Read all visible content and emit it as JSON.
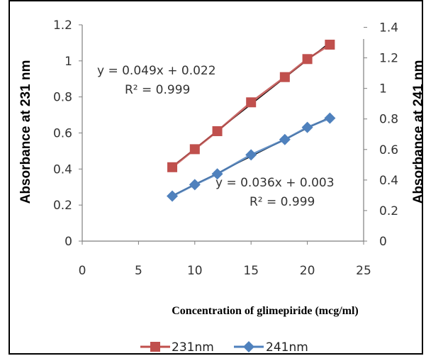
{
  "chart_data": {
    "type": "line",
    "xlabel": "Concentration of glimepiride (mcg/ml)",
    "ylabel": "Absorbance at 231 nm",
    "y2label": "Absorbance at 241 nm",
    "xlim": [
      0,
      25
    ],
    "ylim": [
      0,
      1.2
    ],
    "y2lim": [
      0,
      1.5
    ],
    "x_ticks": [
      "0",
      "5",
      "10",
      "15",
      "20",
      "25"
    ],
    "y_ticks": [
      "0",
      "0.2",
      "0.4",
      "0.6",
      "0.8",
      "1",
      "1.2"
    ],
    "y2_ticks": [
      "0",
      "0.2",
      "0.4",
      "0.6",
      "0.8",
      "1",
      "1.2",
      "1.4"
    ],
    "grid": false,
    "legend_position": "bottom",
    "series": [
      {
        "name": "231nm",
        "axis": "left",
        "color": "#c0504d",
        "marker": "square",
        "x": [
          8,
          10,
          12,
          15,
          18,
          20,
          22
        ],
        "y": [
          0.41,
          0.51,
          0.61,
          0.77,
          0.91,
          1.01,
          1.09
        ]
      },
      {
        "name": "241nm",
        "axis": "right",
        "color": "#4f81bd",
        "marker": "diamond",
        "x": [
          8,
          10,
          12,
          15,
          18,
          20,
          22
        ],
        "y": [
          0.295,
          0.37,
          0.44,
          0.565,
          0.665,
          0.745,
          0.805
        ]
      }
    ],
    "trendline_color": "#000000",
    "annotations": {
      "eq231": "y = 0.049x + 0.022",
      "r231": "R² = 0.999",
      "eq241": "y = 0.036x + 0.003",
      "r241": "R² = 0.999"
    }
  }
}
